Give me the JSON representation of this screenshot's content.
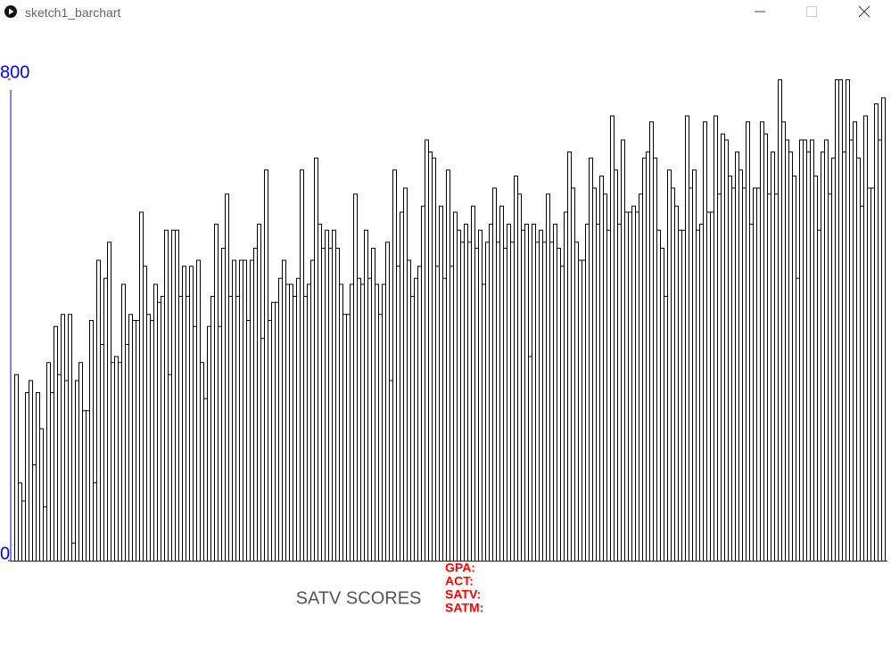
{
  "window": {
    "title": "sketch1_barchart"
  },
  "chart_data": {
    "type": "bar",
    "x_label": "SATV SCORES",
    "color": "#ffffff",
    "edge_color": "#000000",
    "axis_color": "#0000ff",
    "ylim": [
      0,
      800
    ],
    "yticks": [
      0,
      800
    ],
    "values": [
      310,
      130,
      100,
      280,
      300,
      160,
      280,
      220,
      90,
      330,
      280,
      390,
      310,
      410,
      300,
      410,
      30,
      300,
      330,
      250,
      250,
      400,
      130,
      500,
      360,
      470,
      530,
      330,
      340,
      330,
      460,
      360,
      410,
      400,
      400,
      580,
      490,
      410,
      400,
      460,
      430,
      440,
      550,
      310,
      550,
      550,
      440,
      490,
      440,
      490,
      390,
      500,
      330,
      270,
      390,
      440,
      560,
      390,
      520,
      610,
      440,
      500,
      440,
      500,
      500,
      400,
      500,
      520,
      560,
      370,
      650,
      400,
      430,
      430,
      470,
      500,
      460,
      460,
      440,
      470,
      650,
      440,
      460,
      500,
      670,
      560,
      520,
      550,
      520,
      550,
      520,
      460,
      410,
      410,
      460,
      610,
      470,
      460,
      550,
      470,
      520,
      460,
      410,
      460,
      530,
      300,
      650,
      490,
      580,
      620,
      500,
      440,
      470,
      490,
      590,
      700,
      680,
      670,
      490,
      590,
      470,
      650,
      490,
      580,
      550,
      530,
      560,
      530,
      590,
      520,
      550,
      460,
      530,
      560,
      620,
      530,
      590,
      520,
      560,
      530,
      640,
      610,
      550,
      560,
      340,
      560,
      530,
      550,
      530,
      610,
      530,
      560,
      520,
      490,
      580,
      680,
      620,
      530,
      500,
      500,
      560,
      670,
      620,
      560,
      640,
      610,
      550,
      740,
      650,
      560,
      700,
      580,
      580,
      590,
      580,
      610,
      670,
      680,
      730,
      670,
      550,
      520,
      440,
      650,
      620,
      590,
      550,
      550,
      740,
      620,
      650,
      550,
      560,
      730,
      580,
      580,
      740,
      610,
      710,
      700,
      640,
      620,
      680,
      650,
      620,
      730,
      560,
      620,
      620,
      730,
      710,
      610,
      680,
      610,
      800,
      730,
      700,
      680,
      640,
      470,
      700,
      700,
      680,
      700,
      640,
      550,
      680,
      700,
      610,
      670,
      800,
      800,
      680,
      800,
      700,
      730,
      670,
      590,
      740,
      620,
      620,
      760,
      700,
      770
    ]
  },
  "info_panel": {
    "labels": [
      "GPA:",
      "ACT:",
      "SATV:",
      "SATM:"
    ]
  }
}
